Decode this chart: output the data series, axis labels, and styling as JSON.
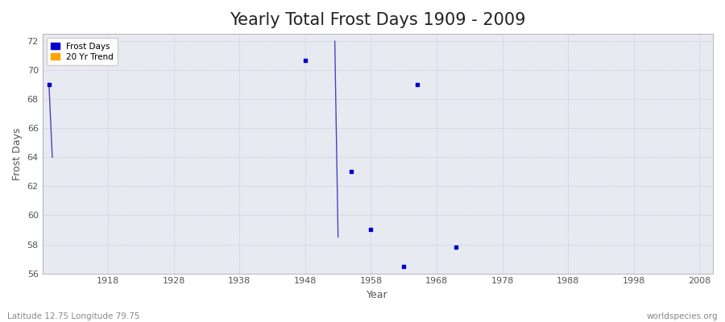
{
  "title": "Yearly Total Frost Days 1909 - 2009",
  "xlabel": "Year",
  "ylabel": "Frost Days",
  "xlim": [
    1908,
    2010
  ],
  "ylim": [
    56,
    72.5
  ],
  "yticks": [
    56,
    58,
    60,
    62,
    64,
    66,
    68,
    70,
    72
  ],
  "xticks": [
    1918,
    1928,
    1938,
    1948,
    1958,
    1968,
    1978,
    1988,
    1998,
    2008
  ],
  "scatter_x": [
    1909,
    1948,
    1955,
    1958,
    1963,
    1965,
    1971
  ],
  "scatter_y": [
    69.0,
    70.7,
    63.0,
    59.0,
    56.5,
    69.0,
    57.8
  ],
  "trend_line1_x": [
    1909.0,
    1909.5
  ],
  "trend_line1_y": [
    69.0,
    64.0
  ],
  "trend_line2_x": [
    1952.5,
    1953.0
  ],
  "trend_line2_y": [
    72.0,
    58.5
  ],
  "scatter_color": "#0000cc",
  "trend_color": "#4444bb",
  "bg_color": "#ffffff",
  "plot_bg_color": "#e8eaf2",
  "grid_color": "#c8cad8",
  "legend_frost_color": "#0000cc",
  "legend_trend_color": "#ffa500",
  "footer_left": "Latitude 12.75 Longitude 79.75",
  "footer_right": "worldspecies.org",
  "title_fontsize": 15,
  "axis_label_fontsize": 9,
  "tick_fontsize": 8,
  "footer_fontsize": 7.5
}
